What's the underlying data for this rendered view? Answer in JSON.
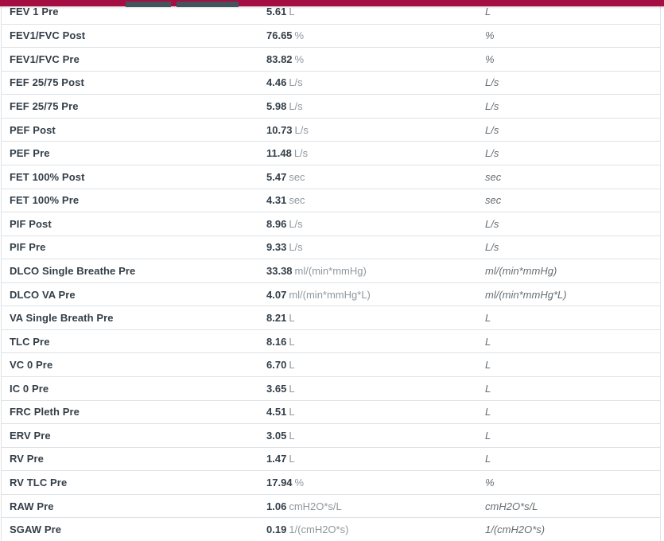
{
  "theme": {
    "accent_bar_color": "#a50e42",
    "tab_stub_color": "#45535e",
    "text_dark": "#333e48",
    "unit_gray": "#8f989e",
    "unit_italic_gray": "#666e74",
    "row_border": "#dee2e6"
  },
  "table": {
    "rows": [
      {
        "param": "FEV 1 Pre",
        "value": "5.61",
        "unit": "L",
        "unit_italic": "L"
      },
      {
        "param": "FEV1/FVC Post",
        "value": "76.65",
        "unit": "%",
        "unit_italic": "%"
      },
      {
        "param": "FEV1/FVC Pre",
        "value": "83.82",
        "unit": "%",
        "unit_italic": "%"
      },
      {
        "param": "FEF 25/75 Post",
        "value": "4.46",
        "unit": "L/s",
        "unit_italic": "L/s"
      },
      {
        "param": "FEF 25/75 Pre",
        "value": "5.98",
        "unit": "L/s",
        "unit_italic": "L/s"
      },
      {
        "param": "PEF Post",
        "value": "10.73",
        "unit": "L/s",
        "unit_italic": "L/s"
      },
      {
        "param": "PEF Pre",
        "value": "11.48",
        "unit": "L/s",
        "unit_italic": "L/s"
      },
      {
        "param": "FET 100% Post",
        "value": "5.47",
        "unit": "sec",
        "unit_italic": "sec"
      },
      {
        "param": "FET 100% Pre",
        "value": "4.31",
        "unit": "sec",
        "unit_italic": "sec"
      },
      {
        "param": "PIF Post",
        "value": "8.96",
        "unit": "L/s",
        "unit_italic": "L/s"
      },
      {
        "param": "PIF Pre",
        "value": "9.33",
        "unit": "L/s",
        "unit_italic": "L/s"
      },
      {
        "param": "DLCO Single Breathe Pre",
        "value": "33.38",
        "unit": "ml/(min*mmHg)",
        "unit_italic": "ml/(min*mmHg)"
      },
      {
        "param": "DLCO VA Pre",
        "value": "4.07",
        "unit": "ml/(min*mmHg*L)",
        "unit_italic": "ml/(min*mmHg*L)"
      },
      {
        "param": "VA Single Breath Pre",
        "value": "8.21",
        "unit": "L",
        "unit_italic": "L"
      },
      {
        "param": "TLC Pre",
        "value": "8.16",
        "unit": "L",
        "unit_italic": "L"
      },
      {
        "param": "VC 0 Pre",
        "value": "6.70",
        "unit": "L",
        "unit_italic": "L"
      },
      {
        "param": "IC 0 Pre",
        "value": "3.65",
        "unit": "L",
        "unit_italic": "L"
      },
      {
        "param": "FRC Pleth Pre",
        "value": "4.51",
        "unit": "L",
        "unit_italic": "L"
      },
      {
        "param": "ERV Pre",
        "value": "3.05",
        "unit": "L",
        "unit_italic": "L"
      },
      {
        "param": "RV Pre",
        "value": "1.47",
        "unit": "L",
        "unit_italic": "L"
      },
      {
        "param": "RV TLC Pre",
        "value": "17.94",
        "unit": "%",
        "unit_italic": "%"
      },
      {
        "param": "RAW Pre",
        "value": "1.06",
        "unit": "cmH2O*s/L",
        "unit_italic": "cmH2O*s/L"
      },
      {
        "param": "SGAW Pre",
        "value": "0.19",
        "unit": "1/(cmH2O*s)",
        "unit_italic": "1/(cmH2O*s)"
      }
    ]
  }
}
